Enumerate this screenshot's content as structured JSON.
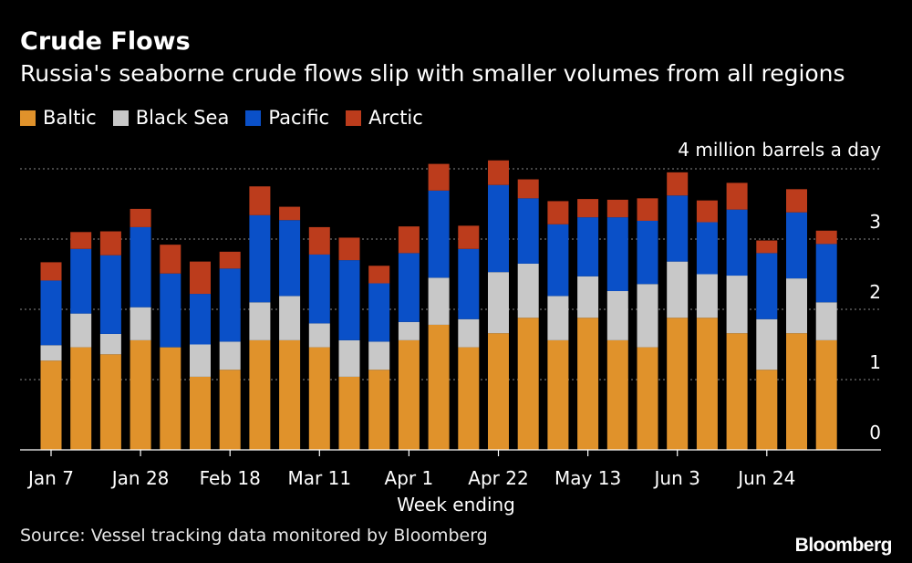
{
  "chart_data": {
    "type": "bar",
    "stacked": true,
    "title": "Crude Flows",
    "subtitle": "Russia's seaborne crude flows slip with smaller volumes from all regions",
    "unit_label": "4 million barrels a day",
    "xlabel": "Week ending",
    "source": "Source: Vessel tracking data monitored by Bloomberg",
    "brand": "Bloomberg",
    "ylim": [
      0,
      4
    ],
    "yticks": [
      "0",
      "1",
      "2",
      "3"
    ],
    "xtick_labels": [
      "Jan 7",
      "Jan 28",
      "Feb 18",
      "Mar 11",
      "Apr 1",
      "Apr 22",
      "May 13",
      "Jun 3",
      "Jun 24"
    ],
    "xtick_every": 3,
    "legend_position": "top-left",
    "series": [
      {
        "name": "Baltic",
        "color": "#e0922b",
        "values": [
          1.27,
          1.46,
          1.36,
          1.56,
          1.46,
          1.04,
          1.14,
          1.56,
          1.56,
          1.46,
          1.04,
          1.14,
          1.56,
          1.78,
          1.46,
          1.66,
          1.88,
          1.56,
          1.88,
          1.56,
          1.46,
          1.88,
          1.88,
          1.66,
          1.14,
          1.66,
          1.56
        ]
      },
      {
        "name": "Black Sea",
        "color": "#c8c8c8",
        "values": [
          0.22,
          0.48,
          0.29,
          0.47,
          0.0,
          0.46,
          0.4,
          0.54,
          0.63,
          0.34,
          0.52,
          0.4,
          0.26,
          0.67,
          0.4,
          0.87,
          0.77,
          0.63,
          0.59,
          0.7,
          0.9,
          0.8,
          0.62,
          0.82,
          0.72,
          0.78,
          0.54
        ]
      },
      {
        "name": "Pacific",
        "color": "#0a50c8",
        "values": [
          0.92,
          0.92,
          1.12,
          1.14,
          1.05,
          0.72,
          1.04,
          1.24,
          1.08,
          0.98,
          1.14,
          0.83,
          0.98,
          1.24,
          1.0,
          1.24,
          0.93,
          1.02,
          0.84,
          1.05,
          0.9,
          0.94,
          0.74,
          0.94,
          0.94,
          0.94,
          0.83
        ]
      },
      {
        "name": "Arctic",
        "color": "#bc3c1c",
        "values": [
          0.26,
          0.24,
          0.34,
          0.26,
          0.41,
          0.46,
          0.24,
          0.41,
          0.19,
          0.39,
          0.32,
          0.25,
          0.38,
          0.38,
          0.33,
          0.35,
          0.27,
          0.33,
          0.26,
          0.25,
          0.32,
          0.33,
          0.31,
          0.38,
          0.18,
          0.33,
          0.19
        ]
      }
    ]
  }
}
